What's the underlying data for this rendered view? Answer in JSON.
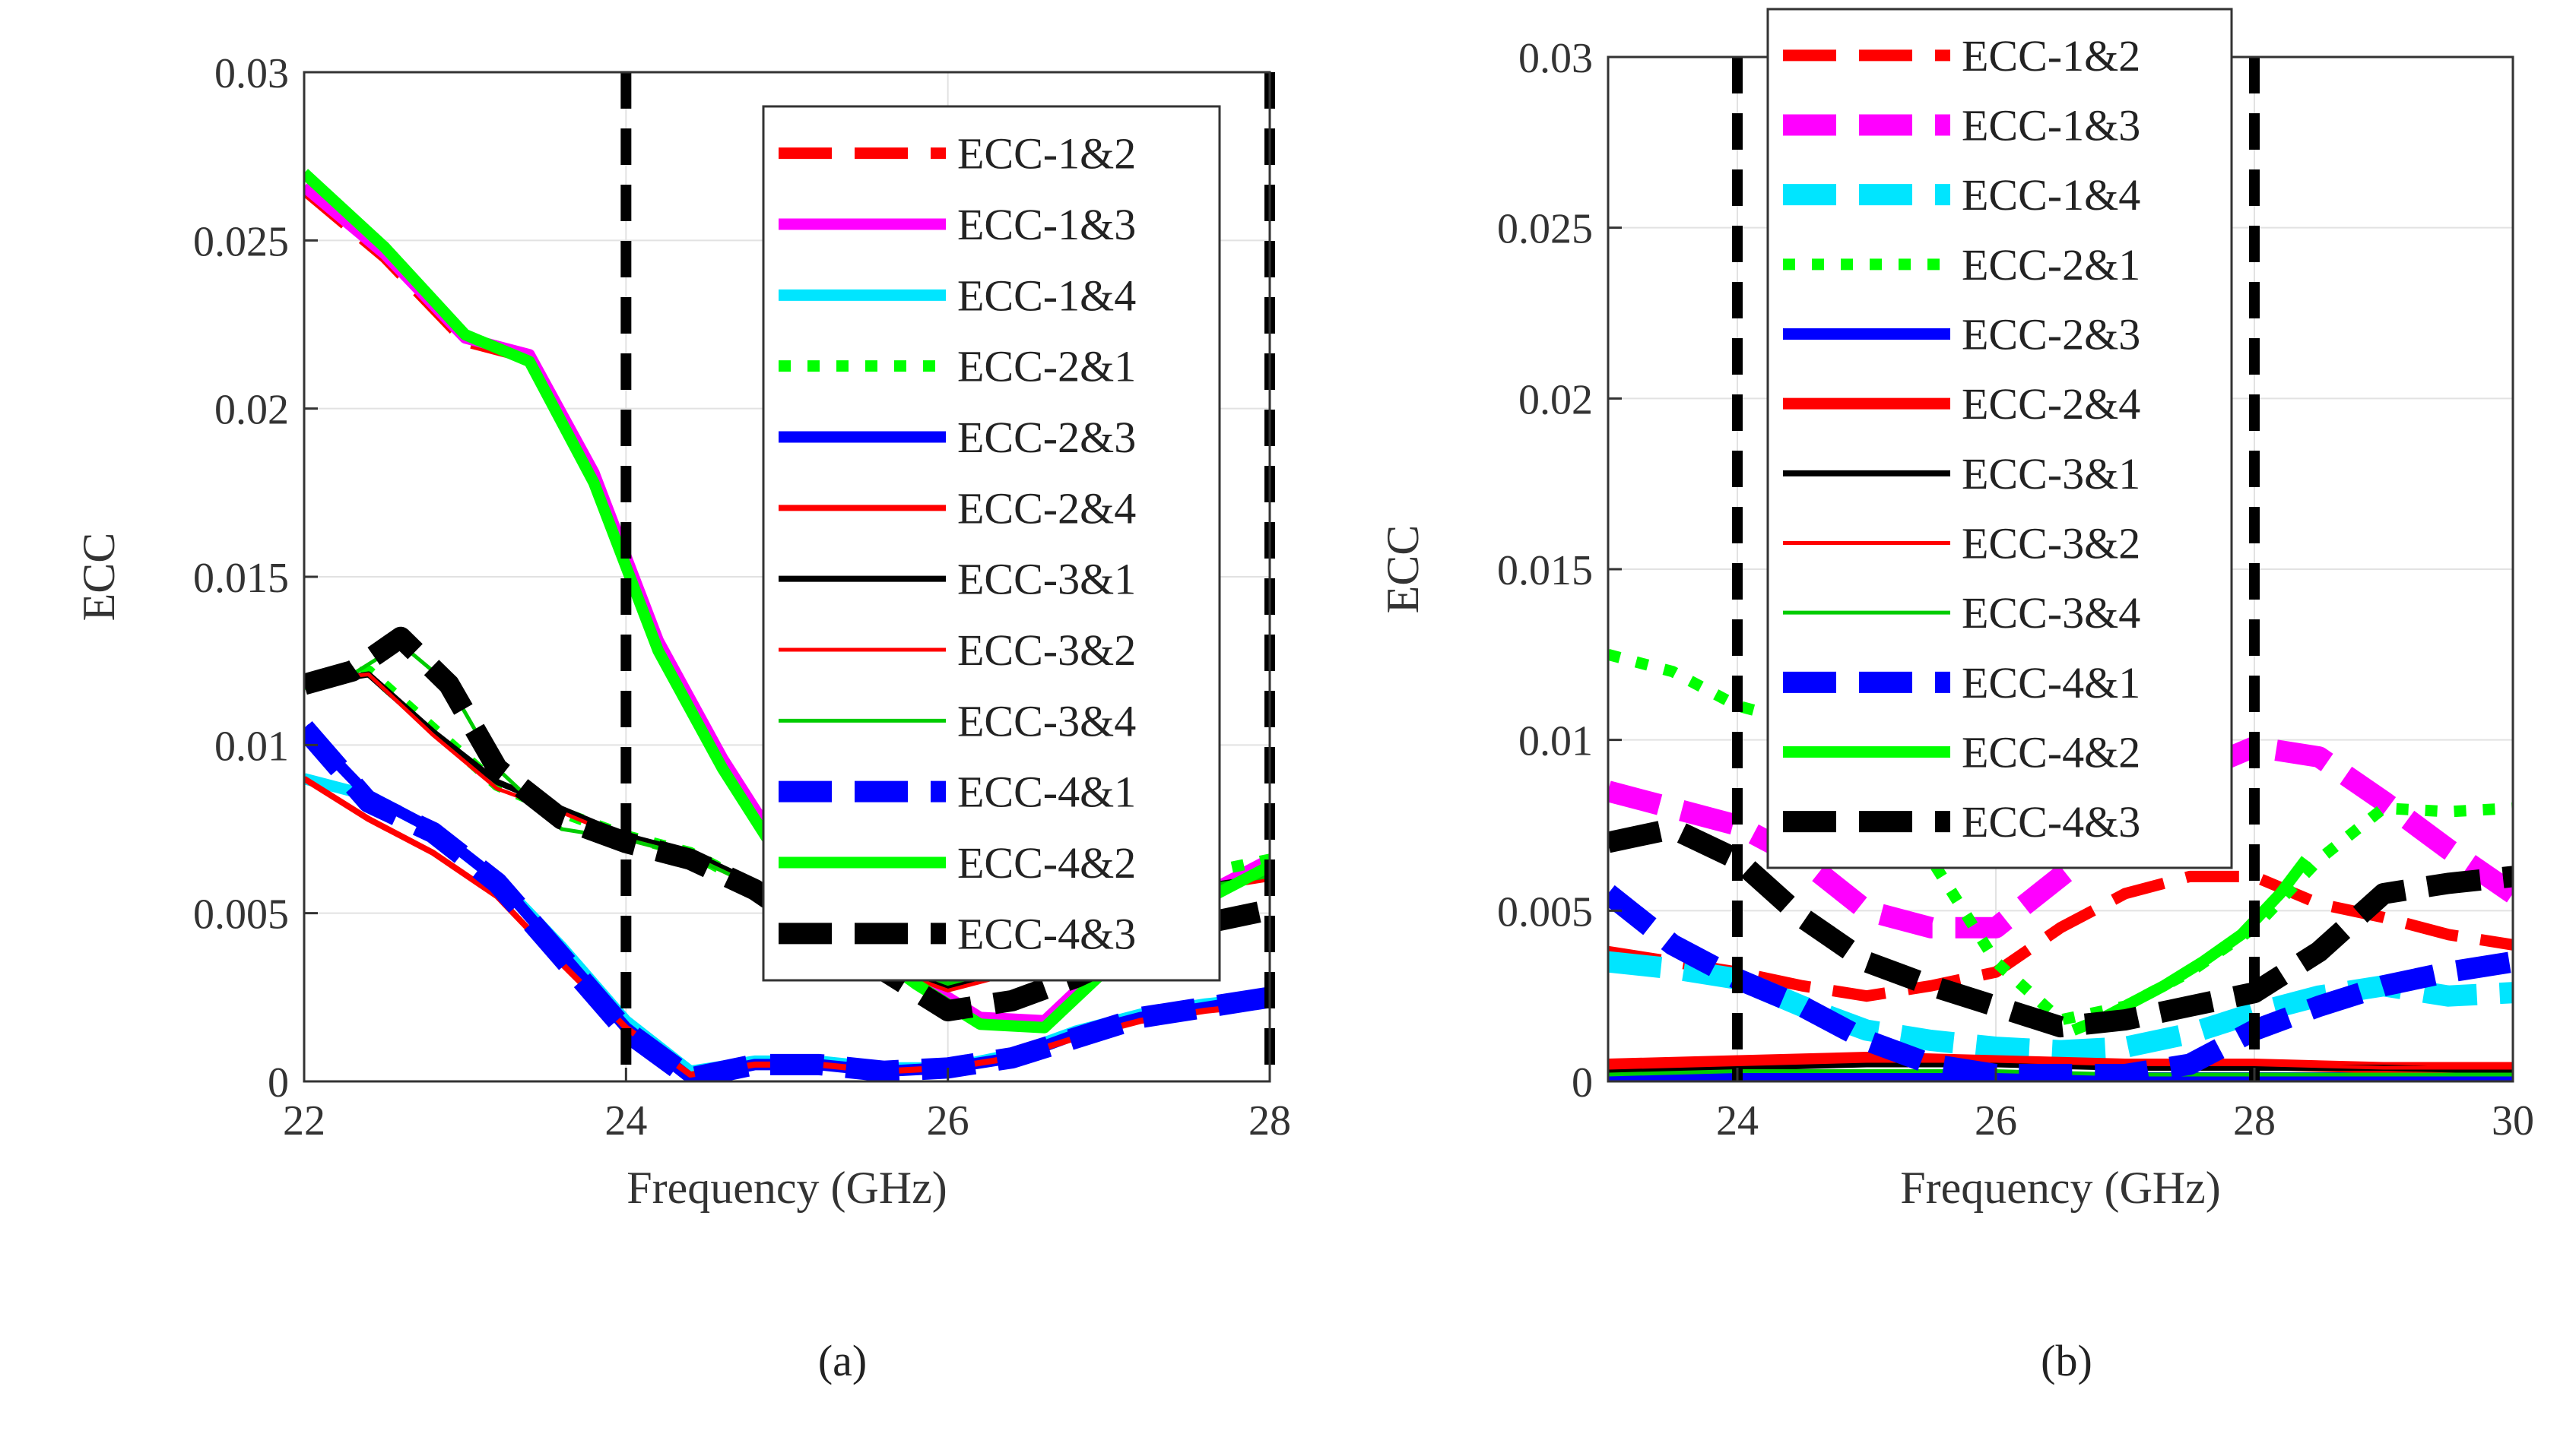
{
  "figure": {
    "panel_a_label": "(a)",
    "panel_b_label": "(b)"
  },
  "chart_data": [
    {
      "type": "line",
      "panel": "(a)",
      "title": "",
      "xlabel": "Frequency (GHz)",
      "ylabel": "ECC",
      "xlim": [
        22,
        28
      ],
      "ylim": [
        0,
        0.03
      ],
      "xticks": [
        22,
        24,
        26,
        28
      ],
      "xtick_labels": [
        "22",
        "24",
        "26",
        "28"
      ],
      "yticks": [
        0,
        0.005,
        0.01,
        0.015,
        0.02,
        0.025,
        0.03
      ],
      "ytick_labels": [
        "0",
        "0.005",
        "0.01",
        "0.015",
        "0.02",
        "0.025",
        "0.03"
      ],
      "grid": true,
      "legend_position": "top-right",
      "vlines": [
        24,
        28
      ],
      "series": [
        {
          "name": "ECC-1&2",
          "color": "#ff0000",
          "style": "dash",
          "width": "thick",
          "x": [
            22,
            22.5,
            23,
            23.4,
            23.8,
            24.2,
            24.6,
            25,
            25.4,
            25.8,
            26.2,
            26.6,
            27,
            27.4,
            27.8,
            28
          ],
          "y": [
            0.0265,
            0.0245,
            0.022,
            0.0215,
            0.018,
            0.013,
            0.0095,
            0.0065,
            0.0045,
            0.003,
            0.0018,
            0.0017,
            0.0035,
            0.005,
            0.006,
            0.0065
          ]
        },
        {
          "name": "ECC-1&3",
          "color": "#ff00ff",
          "style": "solid",
          "width": "thick",
          "x": [
            22,
            22.5,
            23,
            23.4,
            23.8,
            24.2,
            24.6,
            25,
            25.4,
            25.8,
            26.2,
            26.6,
            27,
            27.4,
            27.8,
            28
          ],
          "y": [
            0.0266,
            0.0246,
            0.0221,
            0.0216,
            0.0181,
            0.0131,
            0.0096,
            0.0066,
            0.0046,
            0.0031,
            0.0019,
            0.0018,
            0.0036,
            0.0051,
            0.0061,
            0.0066
          ]
        },
        {
          "name": "ECC-1&4",
          "color": "#00e5ff",
          "style": "solid",
          "width": "thick",
          "x": [
            22,
            22.4,
            22.8,
            23.2,
            23.6,
            24,
            24.4,
            24.8,
            25.2,
            25.6,
            26,
            26.4,
            26.8,
            27.2,
            27.6,
            28
          ],
          "y": [
            0.009,
            0.0085,
            0.0075,
            0.006,
            0.004,
            0.0018,
            0.0003,
            0.0006,
            0.0006,
            0.0004,
            0.0004,
            0.0008,
            0.0015,
            0.002,
            0.0023,
            0.0025
          ]
        },
        {
          "name": "ECC-2&1",
          "color": "#00ff00",
          "style": "dot",
          "width": "thick",
          "x": [
            22,
            22.4,
            22.8,
            23.2,
            23.6,
            24,
            24.4,
            24.8,
            25.2,
            25.6,
            26,
            26.4,
            26.8,
            27.2,
            27.6,
            28
          ],
          "y": [
            0.0118,
            0.0122,
            0.0105,
            0.0088,
            0.008,
            0.0073,
            0.0068,
            0.0058,
            0.0045,
            0.0035,
            0.003,
            0.0035,
            0.0045,
            0.0055,
            0.0062,
            0.0066
          ]
        },
        {
          "name": "ECC-2&3",
          "color": "#0000ff",
          "style": "solid",
          "width": "thick",
          "x": [
            22,
            22.4,
            22.8,
            23.2,
            23.6,
            24,
            24.4,
            24.8,
            25.2,
            25.6,
            26,
            26.4,
            26.8,
            27.2,
            27.6,
            28
          ],
          "y": [
            0.0105,
            0.0085,
            0.0075,
            0.006,
            0.0038,
            0.0016,
            0.0001,
            0.0005,
            0.0005,
            0.0003,
            0.0004,
            0.0007,
            0.0014,
            0.0019,
            0.0022,
            0.0025
          ]
        },
        {
          "name": "ECC-2&4",
          "color": "#ff0000",
          "style": "solid",
          "width": "medium",
          "x": [
            22,
            22.4,
            22.8,
            23.2,
            23.6,
            24,
            24.4,
            24.8,
            25.2,
            25.6,
            26,
            26.4,
            26.8,
            27.2,
            27.6,
            28
          ],
          "y": [
            0.009,
            0.0078,
            0.0068,
            0.0055,
            0.0035,
            0.0016,
            0.0002,
            0.0005,
            0.0005,
            0.0003,
            0.0004,
            0.0007,
            0.0013,
            0.0018,
            0.0021,
            0.0023
          ]
        },
        {
          "name": "ECC-3&1",
          "color": "#000000",
          "style": "solid",
          "width": "medium",
          "x": [
            22,
            22.4,
            22.8,
            23.2,
            23.6,
            24,
            24.4,
            24.8,
            25.2,
            25.6,
            26,
            26.4,
            26.8,
            27.2,
            27.6,
            28
          ],
          "y": [
            0.0118,
            0.0121,
            0.0104,
            0.0089,
            0.0081,
            0.0073,
            0.0068,
            0.0059,
            0.0046,
            0.0035,
            0.0028,
            0.0033,
            0.0043,
            0.0052,
            0.0058,
            0.0061
          ]
        },
        {
          "name": "ECC-3&2",
          "color": "#ff0000",
          "style": "solid",
          "width": "thin",
          "x": [
            22,
            22.4,
            22.8,
            23.2,
            23.6,
            24,
            24.4,
            24.8,
            25.2,
            25.6,
            26,
            26.4,
            26.8,
            27.2,
            27.6,
            28
          ],
          "y": [
            0.0119,
            0.0121,
            0.0103,
            0.0087,
            0.008,
            0.0072,
            0.0067,
            0.0058,
            0.0045,
            0.0034,
            0.0027,
            0.0032,
            0.0042,
            0.0051,
            0.0057,
            0.006
          ]
        },
        {
          "name": "ECC-3&4",
          "color": "#00cc00",
          "style": "solid",
          "width": "thin",
          "x": [
            22,
            22.3,
            22.6,
            22.9,
            23.2,
            23.6,
            24,
            24.4,
            24.8,
            25.2,
            25.6,
            26,
            26.4,
            26.8,
            27.2,
            27.6,
            28
          ],
          "y": [
            0.0118,
            0.0121,
            0.013,
            0.0118,
            0.0093,
            0.0075,
            0.0072,
            0.0067,
            0.0058,
            0.0046,
            0.0036,
            0.0029,
            0.0034,
            0.0044,
            0.0052,
            0.0058,
            0.0061
          ]
        },
        {
          "name": "ECC-4&1",
          "color": "#0000ff",
          "style": "dash",
          "width": "heavy",
          "x": [
            22,
            22.4,
            22.8,
            23.2,
            23.6,
            24,
            24.4,
            24.8,
            25.2,
            25.6,
            26,
            26.4,
            26.8,
            27.2,
            27.6,
            28
          ],
          "y": [
            0.0105,
            0.0083,
            0.0074,
            0.0059,
            0.0037,
            0.0015,
            0.0001,
            0.0005,
            0.0005,
            0.0003,
            0.0004,
            0.0007,
            0.0013,
            0.0019,
            0.0022,
            0.0025
          ]
        },
        {
          "name": "ECC-4&2",
          "color": "#00ff00",
          "style": "solid",
          "width": "thick",
          "x": [
            22,
            22.5,
            23,
            23.4,
            23.8,
            24.2,
            24.6,
            25,
            25.4,
            25.8,
            26.2,
            26.6,
            27,
            27.4,
            27.8,
            28
          ],
          "y": [
            0.027,
            0.0248,
            0.0222,
            0.0214,
            0.0178,
            0.0128,
            0.0093,
            0.0063,
            0.0043,
            0.0029,
            0.0017,
            0.0016,
            0.0034,
            0.0049,
            0.0059,
            0.0064
          ]
        },
        {
          "name": "ECC-4&3",
          "color": "#000000",
          "style": "dash",
          "width": "heavy",
          "x": [
            22,
            22.3,
            22.6,
            22.9,
            23.2,
            23.6,
            24,
            24.4,
            24.8,
            25.2,
            25.6,
            26,
            26.4,
            26.8,
            27.2,
            27.6,
            28
          ],
          "y": [
            0.0118,
            0.0122,
            0.0132,
            0.0118,
            0.0093,
            0.0078,
            0.0071,
            0.0066,
            0.0057,
            0.0044,
            0.0033,
            0.0021,
            0.0024,
            0.0031,
            0.004,
            0.0047,
            0.0051
          ]
        }
      ]
    },
    {
      "type": "line",
      "panel": "(b)",
      "title": "",
      "xlabel": "Frequency (GHz)",
      "ylabel": "ECC",
      "xlim": [
        23,
        30
      ],
      "ylim": [
        0,
        0.03
      ],
      "xticks": [
        24,
        26,
        28,
        30
      ],
      "xtick_labels": [
        "24",
        "26",
        "28",
        "30"
      ],
      "yticks": [
        0,
        0.005,
        0.01,
        0.015,
        0.02,
        0.025,
        0.03
      ],
      "ytick_labels": [
        "0",
        "0.005",
        "0.01",
        "0.015",
        "0.02",
        "0.025",
        "0.03"
      ],
      "grid": true,
      "legend_position": "top-center",
      "vlines": [
        24,
        28
      ],
      "series": [
        {
          "name": "ECC-1&2",
          "color": "#ff0000",
          "style": "dash",
          "width": "thick",
          "x": [
            23,
            23.5,
            24,
            24.5,
            25,
            25.5,
            26,
            26.5,
            27,
            27.5,
            28,
            28.5,
            29,
            29.5,
            30
          ],
          "y": [
            0.0038,
            0.0035,
            0.0032,
            0.0028,
            0.0025,
            0.0028,
            0.0032,
            0.0045,
            0.0055,
            0.006,
            0.006,
            0.0052,
            0.0048,
            0.0043,
            0.004
          ]
        },
        {
          "name": "ECC-1&3",
          "color": "#ff00ff",
          "style": "dash",
          "width": "heavy",
          "x": [
            23,
            23.5,
            24,
            24.5,
            25,
            25.5,
            26,
            26.5,
            27,
            27.5,
            28,
            28.5,
            29,
            29.5,
            30
          ],
          "y": [
            0.0085,
            0.008,
            0.0075,
            0.0065,
            0.005,
            0.0045,
            0.0045,
            0.006,
            0.0075,
            0.009,
            0.0098,
            0.0095,
            0.0082,
            0.0068,
            0.0055
          ]
        },
        {
          "name": "ECC-1&4",
          "color": "#00e5ff",
          "style": "dash",
          "width": "heavy",
          "x": [
            23,
            23.5,
            24,
            24.5,
            25,
            25.5,
            26,
            26.5,
            27,
            27.5,
            28,
            28.5,
            29,
            29.5,
            30
          ],
          "y": [
            0.0035,
            0.0033,
            0.003,
            0.0022,
            0.0015,
            0.0012,
            0.001,
            0.0009,
            0.001,
            0.0014,
            0.002,
            0.0025,
            0.0028,
            0.0025,
            0.0026
          ]
        },
        {
          "name": "ECC-2&1",
          "color": "#00ff00",
          "style": "dot",
          "width": "thick",
          "x": [
            23,
            23.5,
            24,
            24.5,
            25,
            25.5,
            26,
            26.5,
            27,
            27.5,
            28,
            28.5,
            29,
            29.5,
            30
          ],
          "y": [
            0.0125,
            0.012,
            0.011,
            0.0105,
            0.009,
            0.0065,
            0.0035,
            0.0018,
            0.0022,
            0.0032,
            0.0045,
            0.0065,
            0.008,
            0.0079,
            0.008
          ]
        },
        {
          "name": "ECC-2&3",
          "color": "#0000ff",
          "style": "solid",
          "width": "thick",
          "x": [
            23,
            24,
            25,
            26,
            27,
            28,
            29,
            30
          ],
          "y": [
            0.0001,
            0.0001,
            0.0001,
            0.0001,
            0.0001,
            0.0001,
            0.0001,
            0.0001
          ]
        },
        {
          "name": "ECC-2&4",
          "color": "#ff0000",
          "style": "solid",
          "width": "thick",
          "x": [
            23,
            24,
            25,
            26,
            27,
            28,
            29,
            30
          ],
          "y": [
            0.0005,
            0.0006,
            0.0007,
            0.0006,
            0.0005,
            0.0005,
            0.0004,
            0.0004
          ]
        },
        {
          "name": "ECC-3&1",
          "color": "#000000",
          "style": "solid",
          "width": "medium",
          "x": [
            23,
            24,
            25,
            26,
            27,
            28,
            29,
            30
          ],
          "y": [
            0.0003,
            0.0004,
            0.0005,
            0.0005,
            0.0004,
            0.0004,
            0.0004,
            0.0003
          ]
        },
        {
          "name": "ECC-3&2",
          "color": "#ff0000",
          "style": "solid",
          "width": "thin",
          "x": [
            23,
            24,
            25,
            26,
            27,
            28,
            29,
            30
          ],
          "y": [
            0.0004,
            0.0005,
            0.0006,
            0.0006,
            0.0005,
            0.0005,
            0.0004,
            0.0004
          ]
        },
        {
          "name": "ECC-3&4",
          "color": "#00cc00",
          "style": "solid",
          "width": "thin",
          "x": [
            23,
            24,
            25,
            26,
            27,
            28,
            29,
            30
          ],
          "y": [
            0.0002,
            0.0003,
            0.0003,
            0.0003,
            0.0002,
            0.0002,
            0.0002,
            0.0002
          ]
        },
        {
          "name": "ECC-4&1",
          "color": "#0000ff",
          "style": "dash",
          "width": "heavy",
          "x": [
            23,
            23.5,
            24,
            24.5,
            25,
            25.5,
            26,
            26.5,
            27,
            27.5,
            28,
            28.5,
            29,
            29.5,
            30
          ],
          "y": [
            0.0055,
            0.004,
            0.003,
            0.0022,
            0.0012,
            0.0005,
            0.0002,
            0.0002,
            0.0002,
            0.0005,
            0.0015,
            0.0022,
            0.0028,
            0.0032,
            0.0035
          ]
        },
        {
          "name": "ECC-4&2",
          "color": "#00ff00",
          "style": "solid",
          "width": "thick",
          "x": [
            26.6,
            26.8,
            27,
            27.3,
            27.6,
            27.9,
            28.2,
            28.4
          ],
          "y": [
            0.0015,
            0.0018,
            0.0022,
            0.0028,
            0.0035,
            0.0043,
            0.0055,
            0.0065
          ]
        },
        {
          "name": "ECC-4&3",
          "color": "#000000",
          "style": "dash",
          "width": "heavy",
          "x": [
            23,
            23.5,
            24,
            24.5,
            25,
            25.5,
            26,
            26.5,
            27,
            27.5,
            28,
            28.5,
            29,
            29.5,
            30
          ],
          "y": [
            0.007,
            0.0074,
            0.0065,
            0.0048,
            0.0035,
            0.0028,
            0.0022,
            0.0016,
            0.0018,
            0.0022,
            0.0026,
            0.0038,
            0.0055,
            0.0058,
            0.006
          ]
        }
      ]
    }
  ]
}
